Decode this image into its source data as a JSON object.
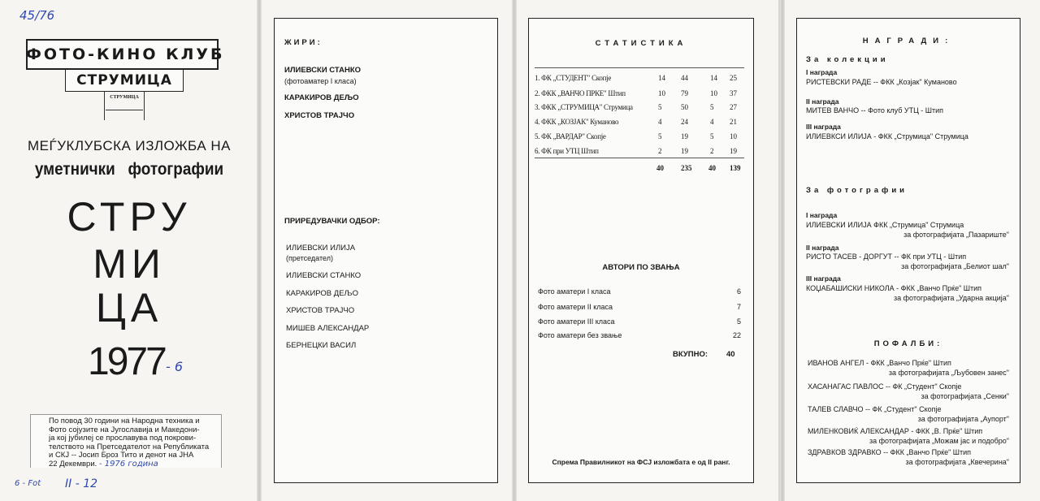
{
  "cover": {
    "handwritten_top": "45/76",
    "club_line1": "ФОТО-КИНО КЛУБ",
    "club_line2": "СТРУМИЦА",
    "club_line3": "СТРУМИЦА",
    "subtitle1": "МЕЃУКЛУБСКА ИЗЛОЖБА НА",
    "subtitle2": "уметнички   фотографии",
    "city1": "СТРУ",
    "city2": "МИ",
    "city3": "ЦА",
    "year": "1977",
    "handwritten_year_suffix": "- 6",
    "note": [
      "По повод 30 години на Народна техника и",
      "Фото сојузите на Југославија и Македони-",
      "ја кој јубилеј се прославува под покрови-",
      "телството на Претседателот на Републиката",
      "и СКЈ -- Јосип Броз Тито и денот на ЈНА",
      "22 Декември."
    ],
    "handwritten_note": "- 1976 година",
    "handwritten_bottom_left": "6 - Fot",
    "handwritten_bottom_mid": "II - 12"
  },
  "jury": {
    "title": "ЖИРИ:",
    "members": [
      {
        "name": "ИЛИЕВСКИ СТАНКО",
        "sub": "(фотоаматер I класа)"
      },
      {
        "name": "КАРАКИРОВ ДЕЉО"
      },
      {
        "name": "ХРИСТОВ ТРАЈЧО"
      }
    ]
  },
  "committee": {
    "title": "ПРИРЕДУВАЧКИ ОДБОР:",
    "members": [
      {
        "name": "ИЛИЕВСКИ ИЛИЈА",
        "sub": "(претседател)"
      },
      {
        "name": "ИЛИЕВСКИ СТАНКО"
      },
      {
        "name": "КАРАКИРОВ ДЕЉО"
      },
      {
        "name": "ХРИСТОВ ТРАЈЧО"
      },
      {
        "name": "МИШЕВ АЛЕКСАНДАР"
      },
      {
        "name": "БЕРНЕЦКИ ВАСИЛ"
      }
    ]
  },
  "statistics": {
    "title": "СТАТИСТИКА",
    "rows": [
      [
        "1. ФК „СТУДЕНТ\" Скопје",
        "14",
        "44",
        "14",
        "25"
      ],
      [
        "2. ФКК „ВАНЧО ПРКЕ\" Штип",
        "10",
        "79",
        "10",
        "37"
      ],
      [
        "3. ФКК „СТРУМИЦА\" Струмица",
        "5",
        "50",
        "5",
        "27"
      ],
      [
        "4. ФКК „КОЗЈАК\" Куманово",
        "4",
        "24",
        "4",
        "21"
      ],
      [
        "5. ФК „ВАРДАР\" Скопје",
        "5",
        "19",
        "5",
        "10"
      ],
      [
        "6. ФК при УТЦ Штип",
        "2",
        "19",
        "2",
        "19"
      ]
    ],
    "totals": [
      "40",
      "235",
      "40",
      "139"
    ],
    "authors_title": "АВТОРИ ПО ЗВАЊА",
    "authors": [
      [
        "Фото аматери I класа",
        "6"
      ],
      [
        "Фото аматери II класа",
        "7"
      ],
      [
        "Фото аматери III класа",
        "5"
      ],
      [
        "Фото аматери без звање",
        "22"
      ]
    ],
    "total_label": "ВКУПНО:",
    "total_value": "40",
    "footer": "Спрема Правилникот на ФСЈ изложбата е од II ранг."
  },
  "awards": {
    "title": "НАГРАДИ:",
    "collections_title": "За колекции",
    "collections": [
      {
        "rank": "I награда",
        "text": "РИСТЕВСКИ РАДЕ -- ФКК „Козјак\" Куманово"
      },
      {
        "rank": "II награда",
        "text": "МИТЕВ ВАНЧО -- Фото клуб УТЦ - Штип"
      },
      {
        "rank": "III награда",
        "text": "ИЛИЕВКСИ ИЛИЈА - ФКК „Струмица\" Струмица"
      }
    ],
    "photos_title": "За фотографии",
    "photos": [
      {
        "rank": "I награда",
        "text": "ИЛИЕВСКИ ИЛИЈА ФКК „Струмица\" Струмица",
        "photo": "за фотографијата „Пазариште\""
      },
      {
        "rank": "II награда",
        "text": "РИСТО ТАСЕВ - ДОРГУТ -- ФК при УТЦ - Штип",
        "photo": "за фотографијата „Белиот шал\""
      },
      {
        "rank": "III награда",
        "text": "КОЏАБАШИСКИ НИКОЛА - ФКК „Ванчо Прќе\" Штип",
        "photo": "за фотографијата „Ударна акција\""
      }
    ],
    "praise_title": "ПОФАЛБИ:",
    "praises": [
      {
        "text": "ИВАНОВ АНГЕЛ - ФКК „Ванчо Прќе\" Штип",
        "photo": "за фотографијата „Љубовен занес\""
      },
      {
        "text": "ХАСАНАГАС ПАВЛОС -- ФК „Студент\" Скопје",
        "photo": "за фотографијата „Сенки\""
      },
      {
        "text": "ТАЛЕВ СЛАВЧО -- ФК „Студент\" Скопје",
        "photo": "за фотографијата „Аупорт\""
      },
      {
        "text": "МИЛЕНКОВИЌ АЛЕКСАНДАР - ФКК „В. Прќе\" Штип",
        "photo": "за фотографијата „Можам јас и подобро\""
      },
      {
        "text": "ЗДРАВКОВ ЗДРАВКО -- ФКК „Ванчо Прќе\" Штип",
        "photo": "за фотографијата „Квечерина\""
      }
    ]
  }
}
